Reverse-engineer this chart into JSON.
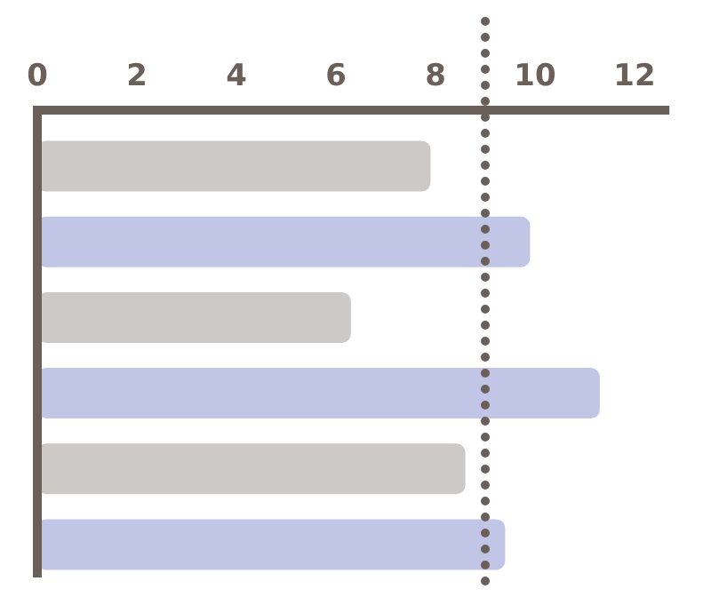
{
  "chart_data": {
    "type": "bar",
    "orientation": "horizontal",
    "categories": [
      null,
      null,
      null,
      null,
      null,
      null
    ],
    "values": [
      7.9,
      9.9,
      6.3,
      11.3,
      8.6,
      9.4
    ],
    "colors": [
      "#ccc9c6",
      "#c1c6e6",
      "#ccc9c6",
      "#c1c6e6",
      "#ccc9c6",
      "#c1c6e6"
    ],
    "xlim": [
      0,
      12.7
    ],
    "xticks": [
      0,
      2,
      4,
      6,
      8,
      10,
      12
    ],
    "ref_lines": [
      {
        "axis": "x",
        "value": 9.0,
        "color": "#6b5f5a",
        "line_style": "dotted"
      }
    ]
  }
}
